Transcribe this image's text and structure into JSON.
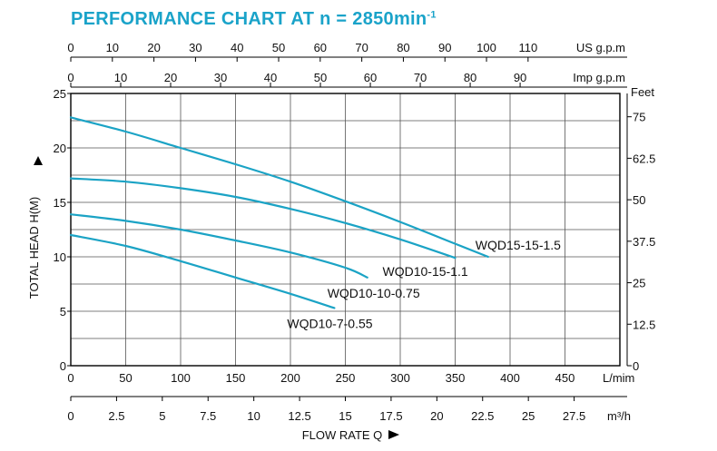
{
  "chart_data": {
    "type": "line",
    "title": "PERFORMANCE CHART AT n = 2850min",
    "title_superscript": "-1",
    "xlabel": "FLOW RATE Q",
    "ylabel": "TOTAL HEAD H(M)",
    "x_unit": "L/mim",
    "xlim": [
      0,
      500
    ],
    "ylim": [
      0,
      25
    ],
    "grid": true,
    "x_ticks": [
      "0",
      "50",
      "100",
      "150",
      "200",
      "250",
      "300",
      "350",
      "400",
      "450"
    ],
    "y_ticks": [
      "0",
      "5",
      "10",
      "15",
      "20",
      "25"
    ],
    "secondary_axes": {
      "us_gpm": {
        "unit": "US g.p.m",
        "ticks": [
          "0",
          "10",
          "20",
          "30",
          "40",
          "50",
          "60",
          "70",
          "80",
          "90",
          "100",
          "110"
        ]
      },
      "imp_gpm": {
        "unit": "Imp g.p.m",
        "ticks": [
          "0",
          "10",
          "20",
          "30",
          "40",
          "50",
          "60",
          "70",
          "80",
          "90"
        ]
      },
      "feet": {
        "unit": "Feet",
        "ticks": [
          "0",
          "12.5",
          "25",
          "37.5",
          "50",
          "62.5",
          "75"
        ],
        "values": [
          0,
          12.5,
          25,
          37.5,
          50,
          62.5,
          75
        ]
      },
      "m3h": {
        "unit": "m³/h",
        "ticks": [
          "0",
          "2.5",
          "5",
          "7.5",
          "10",
          "12.5",
          "15",
          "17.5",
          "20",
          "22.5",
          "25",
          "27.5"
        ]
      }
    },
    "series": [
      {
        "name": "WQD15-15-1.5",
        "color": "#1ba3c5",
        "x": [
          0,
          50,
          100,
          150,
          200,
          250,
          300,
          350,
          380
        ],
        "y": [
          22.8,
          21.5,
          20.0,
          18.5,
          16.9,
          15.1,
          13.2,
          11.2,
          10.0
        ]
      },
      {
        "name": "WQD10-15-1.1",
        "color": "#1ba3c5",
        "x": [
          0,
          50,
          100,
          150,
          200,
          250,
          300,
          350
        ],
        "y": [
          17.2,
          16.9,
          16.3,
          15.5,
          14.4,
          13.1,
          11.6,
          9.9
        ]
      },
      {
        "name": "WQD10-10-0.75",
        "color": "#1ba3c5",
        "x": [
          0,
          50,
          100,
          150,
          200,
          250,
          270
        ],
        "y": [
          13.9,
          13.3,
          12.5,
          11.5,
          10.4,
          9.0,
          8.1
        ]
      },
      {
        "name": "WQD10-7-0.55",
        "color": "#1ba3c5",
        "x": [
          0,
          50,
          100,
          150,
          200,
          240
        ],
        "y": [
          12.0,
          11.0,
          9.6,
          8.1,
          6.6,
          5.3
        ]
      }
    ]
  }
}
